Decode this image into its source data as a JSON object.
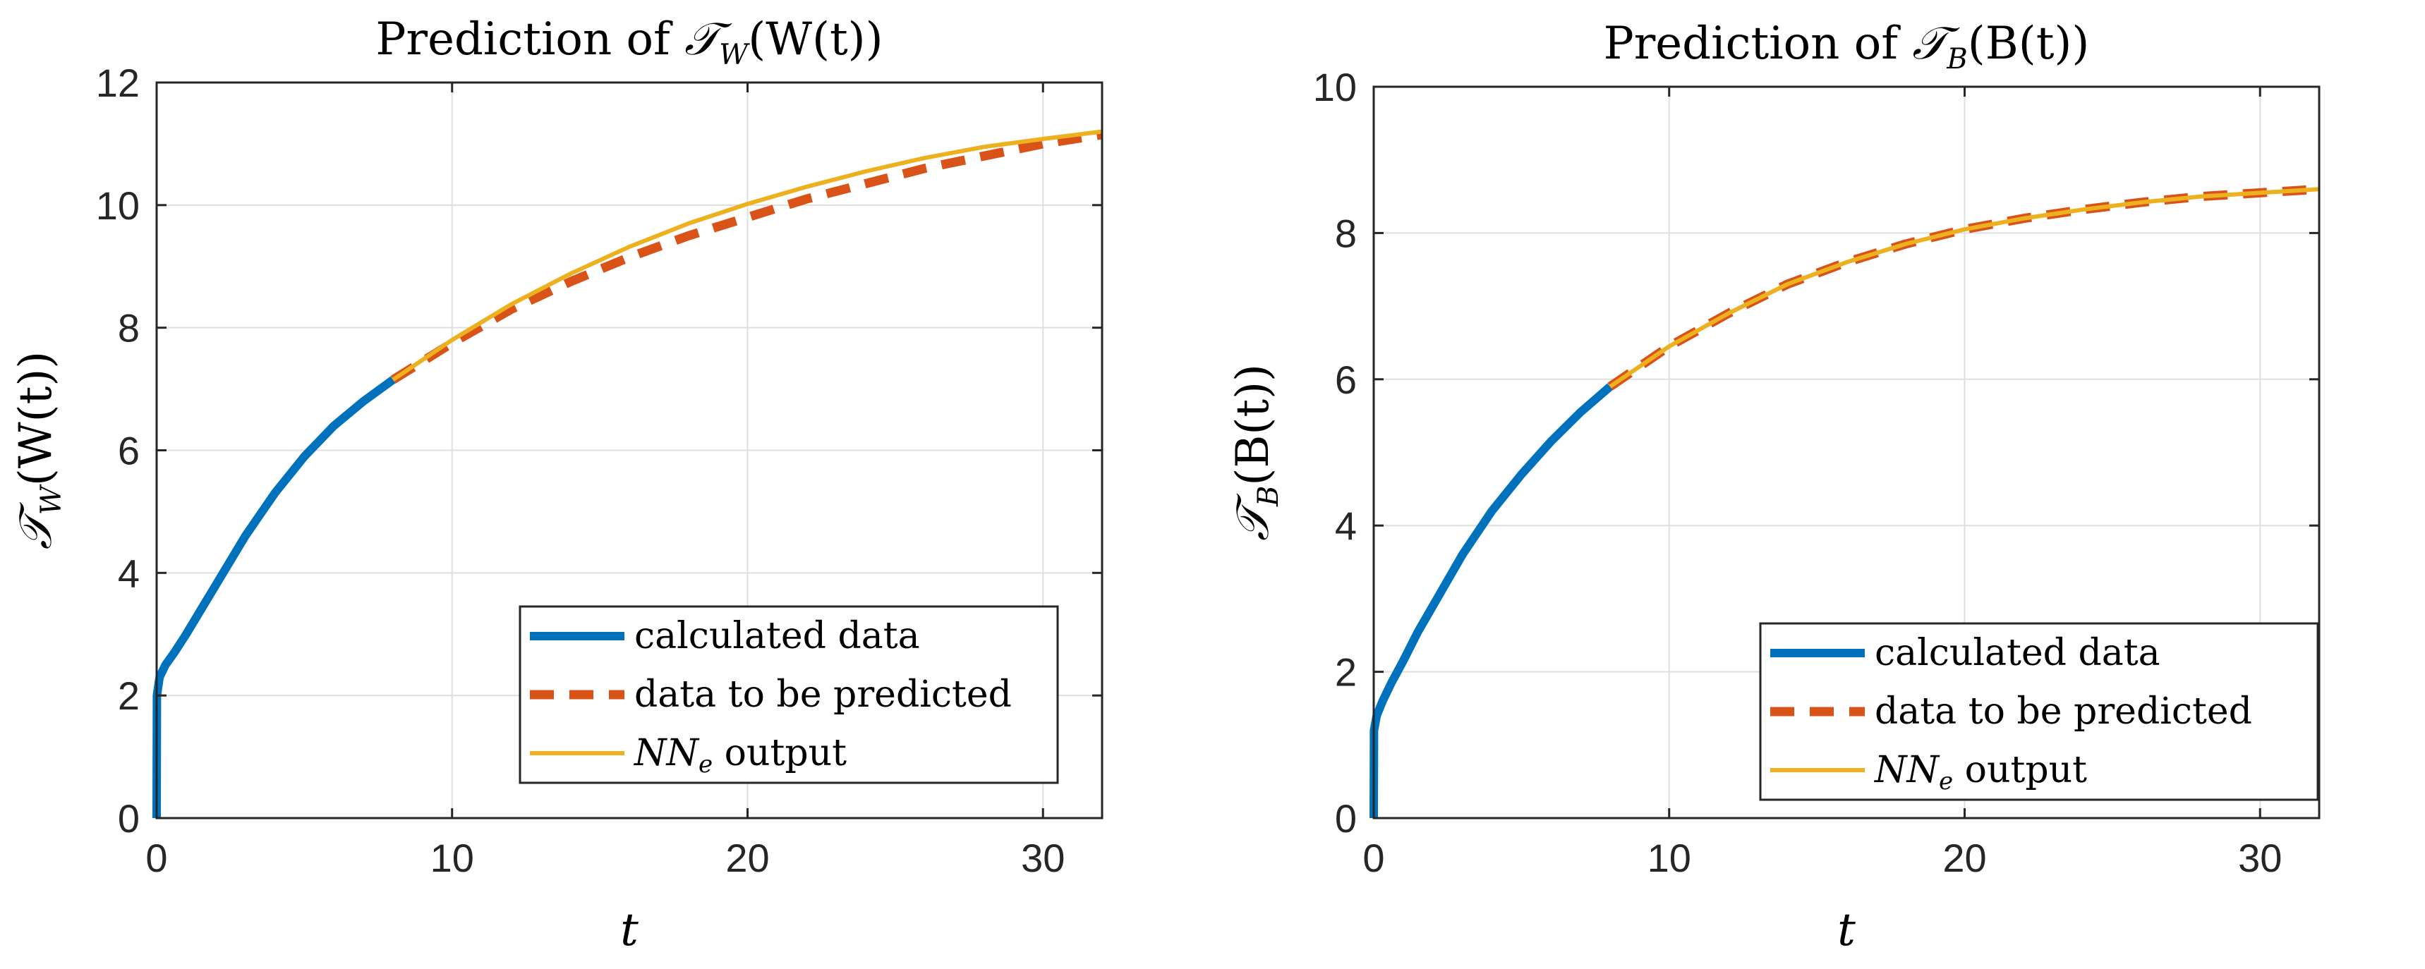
{
  "chart_data": [
    {
      "type": "line",
      "title": "Prediction of 𝒯_W(W(t))",
      "title_parts": {
        "prefix": "Prediction of ",
        "sym": "𝒯",
        "sub": "W",
        "suffix": "(W(t))"
      },
      "xlabel": "t",
      "ylabel": "𝒯_W(W(t))",
      "ylabel_parts": {
        "sym": "𝒯",
        "sub": "W",
        "suffix": "(W(t))"
      },
      "xlim": [
        0,
        32
      ],
      "ylim": [
        0,
        12
      ],
      "xticks": [
        0,
        10,
        20,
        30
      ],
      "yticks": [
        0,
        2,
        4,
        6,
        8,
        10,
        12
      ],
      "grid": true,
      "legend_position": "bottom-right",
      "series": [
        {
          "name": "calculated data",
          "color": "#0072BD",
          "style": "solid",
          "x": [
            0,
            0.01,
            0.1,
            0.3,
            0.6,
            1,
            1.5,
            2,
            3,
            4,
            5,
            6,
            7,
            8
          ],
          "y": [
            0,
            2.0,
            2.3,
            2.5,
            2.7,
            3.0,
            3.4,
            3.8,
            4.6,
            5.3,
            5.9,
            6.4,
            6.8,
            7.15
          ]
        },
        {
          "name": "data to be predicted",
          "color": "#D95319",
          "style": "dashed",
          "x": [
            8,
            10,
            12,
            14,
            16,
            18,
            20,
            22,
            24,
            26,
            28,
            30,
            32
          ],
          "y": [
            7.15,
            7.75,
            8.3,
            8.75,
            9.15,
            9.5,
            9.8,
            10.1,
            10.35,
            10.6,
            10.8,
            11.0,
            11.15
          ]
        },
        {
          "name": "NN_e output",
          "label_parts": {
            "main": "NN",
            "sub": "e",
            "suffix": " output"
          },
          "color": "#EDB120",
          "style": "solid",
          "x": [
            8,
            10,
            12,
            14,
            16,
            18,
            20,
            22,
            24,
            26,
            28,
            30,
            32
          ],
          "y": [
            7.15,
            7.8,
            8.38,
            8.88,
            9.32,
            9.7,
            10.02,
            10.3,
            10.55,
            10.77,
            10.95,
            11.08,
            11.2
          ]
        }
      ]
    },
    {
      "type": "line",
      "title": "Prediction of 𝒯_B(B(t))",
      "title_parts": {
        "prefix": "Prediction of ",
        "sym": "𝒯",
        "sub": "B",
        "suffix": "(B(t))"
      },
      "xlabel": "t",
      "ylabel": "𝒯_B(B(t))",
      "ylabel_parts": {
        "sym": "𝒯",
        "sub": "B",
        "suffix": "(B(t))"
      },
      "xlim": [
        0,
        32
      ],
      "ylim": [
        0,
        10
      ],
      "xticks": [
        0,
        10,
        20,
        30
      ],
      "yticks": [
        0,
        2,
        4,
        6,
        8,
        10
      ],
      "grid": true,
      "legend_position": "bottom-right",
      "series": [
        {
          "name": "calculated data",
          "color": "#0072BD",
          "style": "solid",
          "x": [
            0,
            0.01,
            0.1,
            0.3,
            0.6,
            1,
            1.5,
            2,
            3,
            4,
            5,
            6,
            7,
            8
          ],
          "y": [
            0,
            1.2,
            1.4,
            1.6,
            1.85,
            2.15,
            2.55,
            2.9,
            3.6,
            4.2,
            4.7,
            5.15,
            5.55,
            5.9
          ]
        },
        {
          "name": "data to be predicted",
          "color": "#D95319",
          "style": "dashed",
          "x": [
            8,
            10,
            12,
            14,
            16,
            18,
            20,
            22,
            24,
            26,
            28,
            30,
            32
          ],
          "y": [
            5.9,
            6.45,
            6.9,
            7.3,
            7.6,
            7.85,
            8.05,
            8.2,
            8.32,
            8.42,
            8.5,
            8.55,
            8.6
          ]
        },
        {
          "name": "NN_e output",
          "label_parts": {
            "main": "NN",
            "sub": "e",
            "suffix": " output"
          },
          "color": "#EDB120",
          "style": "solid",
          "x": [
            8,
            10,
            12,
            14,
            16,
            18,
            20,
            22,
            24,
            26,
            28,
            30,
            32
          ],
          "y": [
            5.9,
            6.45,
            6.9,
            7.3,
            7.6,
            7.85,
            8.05,
            8.2,
            8.32,
            8.42,
            8.5,
            8.55,
            8.6
          ]
        }
      ]
    }
  ]
}
